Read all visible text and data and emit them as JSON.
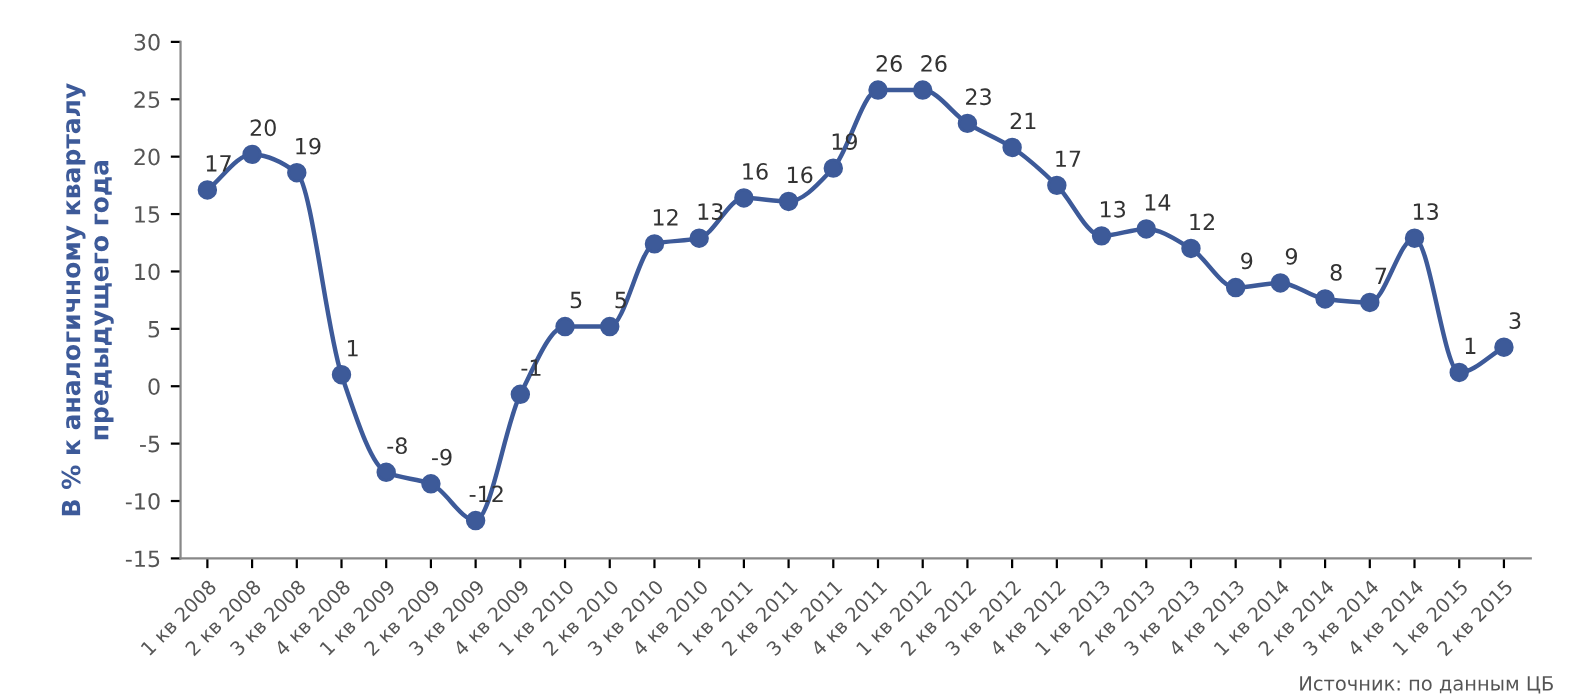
{
  "chart_data": {
    "type": "line",
    "ylabel": "В % к аналогичному кварталу\nпредыдущего года",
    "categories": [
      "1 кв 2008",
      "2 кв 2008",
      "3 кв 2008",
      "4 кв 2008",
      "1 кв 2009",
      "2 кв 2009",
      "3 кв 2009",
      "4 кв 2009",
      "1 кв 2010",
      "2 кв 2010",
      "3 кв 2010",
      "4 кв 2010",
      "1 кв 2011",
      "2 кв 2011",
      "3 кв 2011",
      "4 кв 2011",
      "1 кв 2012",
      "2 кв 2012",
      "3 кв 2012",
      "4 кв 2012",
      "1 кв 2013",
      "2 кв 2013",
      "3 кв 2013",
      "4 кв 2013",
      "1 кв 2014",
      "2 кв 2014",
      "3 кв 2014",
      "4 кв 2014",
      "1 кв 2015",
      "2 кв 2015"
    ],
    "series": [
      {
        "color": "#3d5a99",
        "values": [
          17.1,
          20.2,
          18.6,
          1.0,
          -7.5,
          -8.5,
          -11.7,
          -0.7,
          5.2,
          5.2,
          12.4,
          12.9,
          16.4,
          16.1,
          19.0,
          25.8,
          25.8,
          22.9,
          20.8,
          17.5,
          13.1,
          13.7,
          12.0,
          8.6,
          9.0,
          7.6,
          7.3,
          12.9,
          1.2,
          3.4
        ],
        "value_labels": [
          "17",
          "20",
          "19",
          "1",
          "-8",
          "-9",
          "-12",
          "-1",
          "5",
          "5",
          "12",
          "13",
          "16",
          "16",
          "19",
          "26",
          "26",
          "23",
          "21",
          "17",
          "13",
          "14",
          "12",
          "9",
          "9",
          "8",
          "7",
          "13",
          "1",
          "3"
        ]
      }
    ],
    "ylim": [
      -15,
      30
    ],
    "yticks": [
      -15,
      -10,
      -5,
      0,
      5,
      10,
      15,
      20,
      25,
      30
    ],
    "grid": false,
    "legend": false,
    "marker": "circle",
    "line_style": "solid",
    "annotations": [
      "Источник: по данным ЦБ"
    ]
  }
}
